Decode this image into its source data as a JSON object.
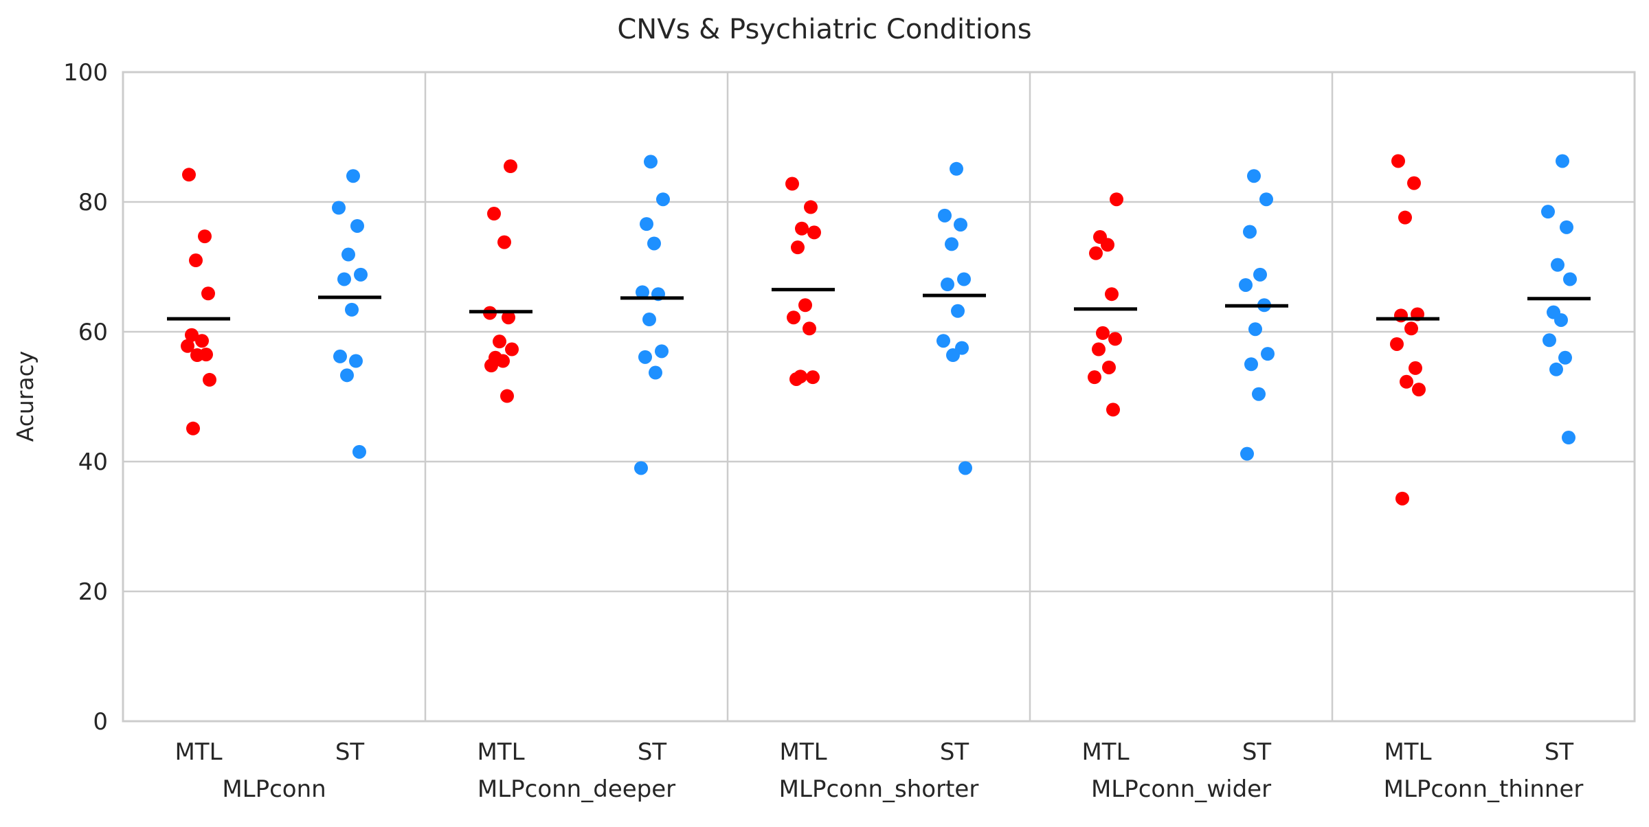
{
  "chart_data": {
    "type": "scatter",
    "title": "CNVs & Psychiatric Conditions",
    "ylabel": "Acuracy",
    "xlabel": "",
    "ylim": [
      0,
      100
    ],
    "yticks": [
      "0",
      "20",
      "40",
      "60",
      "80",
      "100"
    ],
    "grid": true,
    "colors": {
      "MTL": "#ff0000",
      "ST": "#1e90ff",
      "mean": "#000000"
    },
    "groups": [
      {
        "name": "MLPconn",
        "series": [
          {
            "name": "MTL",
            "mean": 62.0,
            "values": [
              84.2,
              74.7,
              71.0,
              65.9,
              59.5,
              58.6,
              57.8,
              56.5,
              56.4,
              52.6,
              45.1
            ]
          },
          {
            "name": "ST",
            "mean": 65.3,
            "values": [
              84.0,
              79.1,
              76.3,
              71.9,
              68.8,
              68.1,
              63.4,
              56.2,
              55.5,
              53.3,
              41.5
            ]
          }
        ]
      },
      {
        "name": "MLPconn_deeper",
        "series": [
          {
            "name": "MTL",
            "mean": 63.1,
            "values": [
              85.5,
              78.2,
              73.8,
              62.9,
              62.2,
              58.5,
              57.3,
              56.0,
              55.5,
              54.8,
              50.1
            ]
          },
          {
            "name": "ST",
            "mean": 65.2,
            "values": [
              86.2,
              80.4,
              76.6,
              73.6,
              66.1,
              65.8,
              61.9,
              57.0,
              56.1,
              53.7,
              39.0
            ]
          }
        ]
      },
      {
        "name": "MLPconn_shorter",
        "series": [
          {
            "name": "MTL",
            "mean": 66.5,
            "values": [
              82.8,
              79.2,
              75.9,
              75.3,
              73.0,
              64.1,
              62.2,
              60.5,
              53.1,
              53.0,
              52.7
            ]
          },
          {
            "name": "ST",
            "mean": 65.6,
            "values": [
              85.1,
              77.9,
              76.5,
              73.5,
              68.1,
              67.3,
              63.2,
              58.6,
              57.5,
              56.4,
              39.0
            ]
          }
        ]
      },
      {
        "name": "MLPconn_wider",
        "series": [
          {
            "name": "MTL",
            "mean": 63.5,
            "values": [
              80.4,
              74.6,
              73.4,
              72.1,
              65.8,
              59.8,
              58.9,
              57.3,
              54.5,
              53.0,
              48.0
            ]
          },
          {
            "name": "ST",
            "mean": 64.0,
            "values": [
              84.0,
              80.4,
              75.4,
              68.8,
              67.2,
              64.1,
              60.4,
              56.6,
              55.0,
              50.4,
              41.2
            ]
          }
        ]
      },
      {
        "name": "MLPconn_thinner",
        "series": [
          {
            "name": "MTL",
            "mean": 62.0,
            "values": [
              86.3,
              82.9,
              77.6,
              62.7,
              62.5,
              60.5,
              58.1,
              54.4,
              52.3,
              51.1,
              34.3
            ]
          },
          {
            "name": "ST",
            "mean": 65.1,
            "values": [
              86.3,
              78.5,
              76.1,
              70.3,
              68.1,
              63.0,
              61.8,
              58.7,
              56.0,
              54.2,
              43.7
            ]
          }
        ]
      }
    ]
  }
}
